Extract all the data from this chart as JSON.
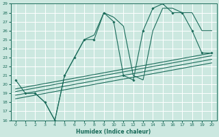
{
  "xlabel": "Humidex (Indice chaleur)",
  "bg_color": "#cce8e0",
  "grid_color": "#ffffff",
  "line_color": "#1a6b5a",
  "ylim": [
    16,
    29
  ],
  "xlim": [
    -0.5,
    20.5
  ],
  "yticks": [
    16,
    17,
    18,
    19,
    20,
    21,
    22,
    23,
    24,
    25,
    26,
    27,
    28,
    29
  ],
  "xticks": [
    0,
    1,
    2,
    3,
    4,
    5,
    6,
    7,
    8,
    9,
    10,
    11,
    12,
    13,
    14,
    15,
    16,
    17,
    18,
    19,
    20
  ],
  "lines": [
    {
      "x": [
        0,
        1,
        2,
        3,
        4,
        5,
        6,
        7,
        8,
        9,
        10,
        11,
        12,
        13,
        14,
        15,
        16,
        17,
        18,
        19,
        20
      ],
      "y": [
        20.5,
        19,
        19,
        18,
        16,
        21,
        23,
        25,
        25,
        28,
        27,
        21,
        20.5,
        26,
        28.5,
        29,
        28,
        28,
        26,
        23.5,
        23.5
      ],
      "marker": true
    },
    {
      "x": [
        2,
        3,
        4,
        5,
        6,
        7,
        8,
        9,
        10,
        11,
        12,
        13,
        14,
        15,
        16,
        17,
        18,
        19,
        20
      ],
      "y": [
        19,
        18,
        16,
        21,
        23,
        25,
        25.5,
        28,
        27.5,
        26.5,
        21,
        20.5,
        26,
        28.5,
        28.5,
        28,
        28,
        26,
        26
      ],
      "marker": false
    },
    {
      "x": [
        0,
        20
      ],
      "y": [
        19.5,
        23.5
      ],
      "marker": false
    },
    {
      "x": [
        0,
        20
      ],
      "y": [
        19.2,
        23.2
      ],
      "marker": false
    },
    {
      "x": [
        0,
        20
      ],
      "y": [
        18.8,
        22.8
      ],
      "marker": false
    },
    {
      "x": [
        0,
        20
      ],
      "y": [
        18.4,
        22.4
      ],
      "marker": false
    }
  ]
}
